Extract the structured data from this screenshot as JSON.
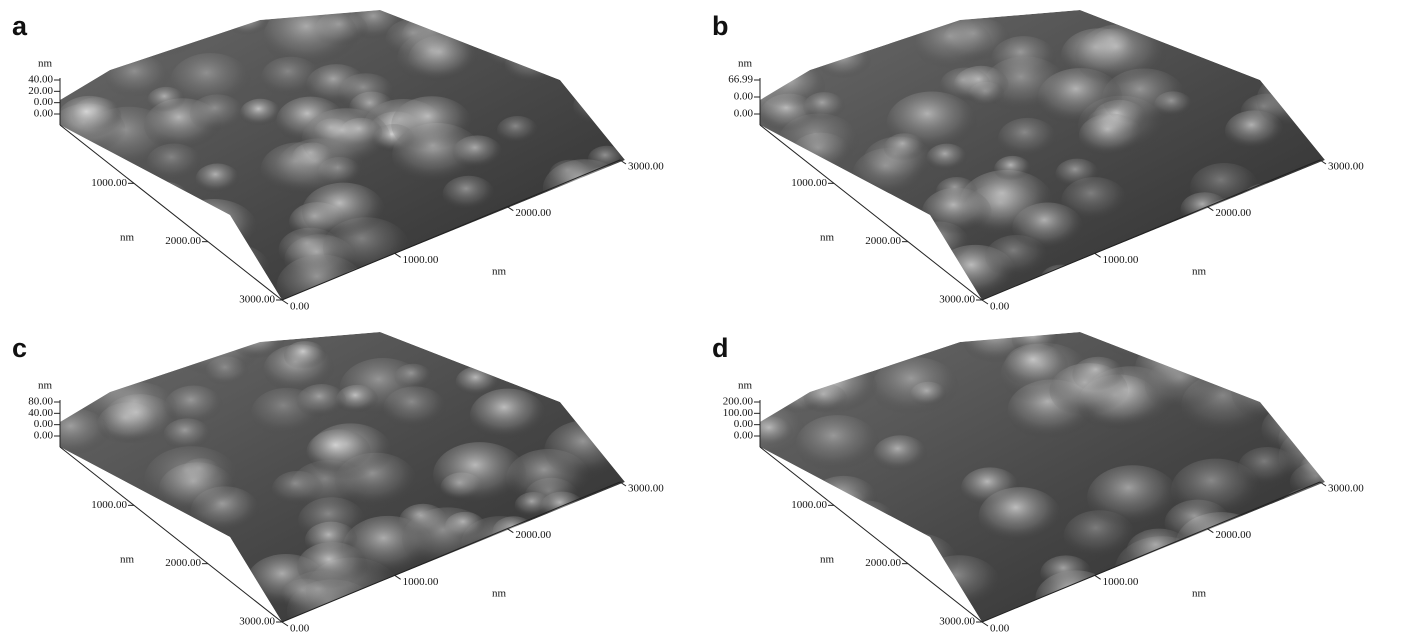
{
  "panels": [
    {
      "label": "a",
      "z_unit": "nm",
      "z_ticks": [
        "40.00",
        "20.00",
        "0.00",
        "0.00"
      ],
      "y_ticks": [
        "1000.00",
        "2000.00",
        "3000.00"
      ],
      "y_unit": "nm",
      "x_ticks": [
        "0.00",
        "1000.00",
        "2000.00",
        "3000.00"
      ],
      "x_unit": "nm"
    },
    {
      "label": "b",
      "z_unit": "nm",
      "z_ticks": [
        "66.99",
        "0.00",
        "0.00"
      ],
      "y_ticks": [
        "1000.00",
        "2000.00",
        "3000.00"
      ],
      "y_unit": "nm",
      "x_ticks": [
        "0.00",
        "1000.00",
        "2000.00",
        "3000.00"
      ],
      "x_unit": "nm"
    },
    {
      "label": "c",
      "z_unit": "nm",
      "z_ticks": [
        "80.00",
        "40.00",
        "0.00",
        "0.00"
      ],
      "y_ticks": [
        "1000.00",
        "2000.00",
        "3000.00"
      ],
      "y_unit": "nm",
      "x_ticks": [
        "0.00",
        "1000.00",
        "2000.00",
        "3000.00"
      ],
      "x_unit": "nm"
    },
    {
      "label": "d",
      "z_unit": "nm",
      "z_ticks": [
        "200.00",
        "100.00",
        "0.00",
        "0.00"
      ],
      "y_ticks": [
        "1000.00",
        "2000.00",
        "3000.00"
      ],
      "y_unit": "nm",
      "x_ticks": [
        "0.00",
        "1000.00",
        "2000.00",
        "3000.00"
      ],
      "x_unit": "nm"
    }
  ]
}
